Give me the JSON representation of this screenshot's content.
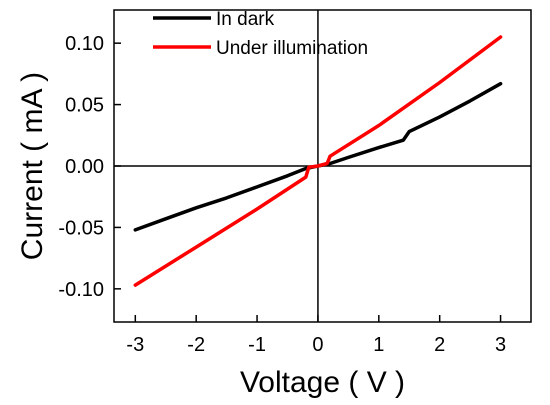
{
  "chart_data": {
    "type": "line",
    "xlabel": "Voltage ( V )",
    "ylabel": "Current ( mA )",
    "xlim": [
      -3.35,
      3.5
    ],
    "ylim": [
      -0.127,
      0.127
    ],
    "xticks": [
      -3,
      -2,
      -1,
      0,
      1,
      2,
      3
    ],
    "xtick_labels": [
      "-3",
      "-2",
      "-1",
      "0",
      "1",
      "2",
      "3"
    ],
    "yticks": [
      -0.1,
      -0.05,
      0.0,
      0.05,
      0.1
    ],
    "ytick_labels": [
      "-0.10",
      "-0.05",
      "0.00",
      "0.05",
      "0.10"
    ],
    "zero_lines": true,
    "legend_position": "top-left",
    "series": [
      {
        "name": "In dark",
        "color": "#000000",
        "x": [
          -3.0,
          -2.5,
          -2.0,
          -1.5,
          -1.0,
          -0.5,
          -0.2,
          0.0,
          0.2,
          0.5,
          1.0,
          1.4,
          1.5,
          2.0,
          2.5,
          3.0
        ],
        "y": [
          -0.052,
          -0.043,
          -0.034,
          -0.026,
          -0.017,
          -0.008,
          -0.002,
          0.0,
          0.002,
          0.007,
          0.015,
          0.021,
          0.028,
          0.04,
          0.053,
          0.067
        ]
      },
      {
        "name": "Under illumination",
        "color": "#ff0000",
        "x": [
          -3.0,
          -2.0,
          -1.0,
          -0.2,
          -0.15,
          0.0,
          0.15,
          0.2,
          1.0,
          2.0,
          3.0
        ],
        "y": [
          -0.097,
          -0.066,
          -0.035,
          -0.009,
          -0.001,
          0.0,
          0.002,
          0.008,
          0.033,
          0.068,
          0.105
        ]
      }
    ]
  }
}
